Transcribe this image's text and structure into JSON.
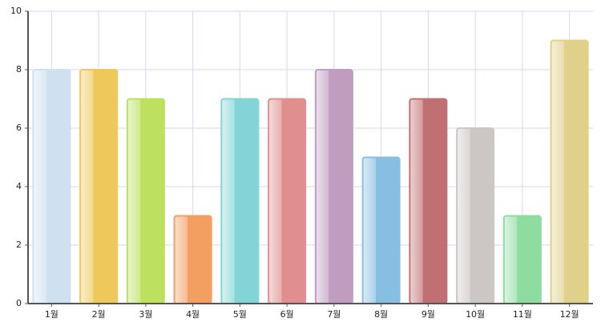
{
  "chart_data": {
    "type": "bar",
    "categories": [
      "1월",
      "2월",
      "3월",
      "4월",
      "5월",
      "6월",
      "7월",
      "8월",
      "9월",
      "10월",
      "11월",
      "12월"
    ],
    "values": [
      8,
      8,
      7,
      3,
      7,
      7,
      8,
      5,
      7,
      6,
      3,
      9
    ],
    "colors": [
      "#cfe0f0",
      "#eec85a",
      "#bde05e",
      "#f59e62",
      "#82d4d6",
      "#e08e8e",
      "#c09cc0",
      "#86bfe2",
      "#c07072",
      "#ccc6c4",
      "#8edca0",
      "#dfd08a"
    ],
    "ylim": [
      0,
      10
    ],
    "yticks": [
      0,
      2,
      4,
      6,
      8,
      10
    ],
    "grid": true
  }
}
